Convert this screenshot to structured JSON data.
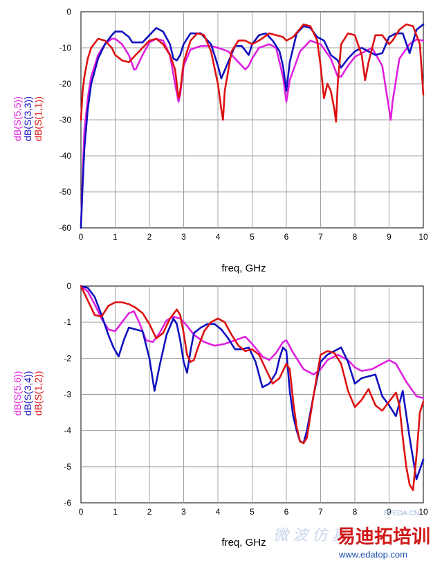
{
  "watermark": {
    "small": "RFEDA.CN",
    "brand": "易迪拓培训",
    "url": "www.edatop.com",
    "faint": "微 波 仿 真"
  },
  "chart_data": [
    {
      "type": "line",
      "xlabel": "freq, GHz",
      "xlim": [
        0,
        10
      ],
      "ylim": [
        -60,
        0
      ],
      "xticks": [
        0,
        1,
        2,
        3,
        4,
        5,
        6,
        7,
        8,
        9,
        10
      ],
      "yticks": [
        0,
        -10,
        -20,
        -30,
        -40,
        -50,
        -60
      ],
      "grid": true,
      "legend_placement": "left-vertical",
      "series": [
        {
          "name": "dB(S(5,5))",
          "color": "#e020e0",
          "x": [
            0,
            0.05,
            0.1,
            0.2,
            0.3,
            0.5,
            0.7,
            0.9,
            1.0,
            1.2,
            1.4,
            1.55,
            1.6,
            1.8,
            2.0,
            2.2,
            2.4,
            2.6,
            2.75,
            2.85,
            2.9,
            3.0,
            3.2,
            3.5,
            3.8,
            4.0,
            4.3,
            4.6,
            4.8,
            4.9,
            5.0,
            5.2,
            5.5,
            5.7,
            5.9,
            6.0,
            6.1,
            6.4,
            6.7,
            7.0,
            7.3,
            7.5,
            7.6,
            7.8,
            8.0,
            8.5,
            8.8,
            9.0,
            9.05,
            9.1,
            9.3,
            9.6,
            9.8,
            10.0
          ],
          "y": [
            -60,
            -45,
            -33,
            -24,
            -18,
            -12,
            -9,
            -7.5,
            -7.5,
            -9,
            -12,
            -16,
            -16,
            -12,
            -8.5,
            -7.5,
            -8,
            -12,
            -20,
            -25,
            -23,
            -15,
            -10.5,
            -9.5,
            -9.5,
            -10,
            -11,
            -14,
            -16,
            -15,
            -13,
            -10,
            -9,
            -10,
            -18,
            -25,
            -19,
            -11,
            -8,
            -9,
            -13,
            -18,
            -18,
            -15,
            -12.5,
            -10,
            -15,
            -27,
            -30,
            -25,
            -13,
            -9,
            -7.7,
            -8
          ]
        },
        {
          "name": "dB(S(3,3))",
          "color": "#1010c0",
          "x": [
            0,
            0.05,
            0.1,
            0.2,
            0.3,
            0.5,
            0.7,
            0.9,
            1.0,
            1.2,
            1.4,
            1.5,
            1.6,
            1.8,
            2.0,
            2.2,
            2.4,
            2.6,
            2.7,
            2.8,
            2.9,
            3.0,
            3.2,
            3.5,
            3.8,
            4.0,
            4.1,
            4.3,
            4.5,
            4.7,
            4.9,
            5.0,
            5.2,
            5.4,
            5.6,
            5.8,
            5.9,
            6.0,
            6.1,
            6.3,
            6.5,
            6.7,
            6.9,
            7.1,
            7.3,
            7.5,
            7.6,
            7.8,
            8.0,
            8.2,
            8.4,
            8.6,
            8.8,
            9.0,
            9.2,
            9.4,
            9.6,
            9.8,
            10.0
          ],
          "y": [
            -60,
            -48,
            -38,
            -27,
            -20,
            -13,
            -9,
            -6.5,
            -5.5,
            -5.5,
            -7,
            -8.5,
            -8.5,
            -8.5,
            -6.5,
            -4.5,
            -5.5,
            -9,
            -13,
            -13.5,
            -12,
            -9,
            -6,
            -6,
            -9,
            -15,
            -18.5,
            -14,
            -9.5,
            -9.5,
            -12,
            -9,
            -6.5,
            -6,
            -8,
            -11,
            -15,
            -22,
            -14,
            -6,
            -4,
            -4.5,
            -7,
            -8,
            -12,
            -13.5,
            -15.5,
            -13,
            -11,
            -10,
            -11,
            -12,
            -11.5,
            -7,
            -6,
            -6,
            -11.5,
            -5,
            -3.5
          ]
        },
        {
          "name": "dB(S(1,1))",
          "color": "#dd1010",
          "x": [
            0,
            0.05,
            0.1,
            0.2,
            0.3,
            0.5,
            0.7,
            0.9,
            1.0,
            1.2,
            1.4,
            1.6,
            1.8,
            2.0,
            2.2,
            2.4,
            2.6,
            2.75,
            2.85,
            2.9,
            3.0,
            3.2,
            3.4,
            3.6,
            3.8,
            4.0,
            4.1,
            4.15,
            4.2,
            4.4,
            4.6,
            4.8,
            5.0,
            5.2,
            5.5,
            5.7,
            5.9,
            6.0,
            6.2,
            6.5,
            6.7,
            6.9,
            7.0,
            7.1,
            7.2,
            7.3,
            7.4,
            7.45,
            7.5,
            7.6,
            7.8,
            8.0,
            8.2,
            8.3,
            8.4,
            8.6,
            8.8,
            9.0,
            9.1,
            9.3,
            9.5,
            9.7,
            9.9,
            10.0
          ],
          "y": [
            -30,
            -22,
            -18,
            -13,
            -10,
            -7.5,
            -8,
            -10,
            -12,
            -13.5,
            -14,
            -12,
            -10,
            -8,
            -7.5,
            -9,
            -12,
            -16,
            -24,
            -22,
            -14,
            -8,
            -6,
            -6.5,
            -11,
            -20,
            -27,
            -30,
            -22,
            -11,
            -8,
            -8,
            -9,
            -8,
            -6,
            -6.5,
            -7,
            -8,
            -7,
            -3.5,
            -4,
            -8,
            -15,
            -24,
            -20,
            -22,
            -27,
            -30.5,
            -20,
            -9,
            -6,
            -6.5,
            -12,
            -19,
            -14,
            -6.5,
            -6.5,
            -9,
            -8,
            -5,
            -3.5,
            -4,
            -9,
            -23
          ]
        }
      ]
    },
    {
      "type": "line",
      "xlabel": "freq, GHz",
      "xlim": [
        0,
        10
      ],
      "ylim": [
        -6,
        0
      ],
      "xticks": [
        0,
        1,
        2,
        3,
        4,
        5,
        6,
        7,
        8,
        9,
        10
      ],
      "yticks": [
        0,
        -1,
        -2,
        -3,
        -4,
        -5,
        -6
      ],
      "grid": true,
      "legend_placement": "left-vertical",
      "series": [
        {
          "name": "dB(S(5,6))",
          "color": "#e020e0",
          "x": [
            0,
            0.2,
            0.4,
            0.6,
            0.8,
            1.0,
            1.2,
            1.4,
            1.55,
            1.7,
            1.9,
            2.1,
            2.3,
            2.5,
            2.7,
            2.9,
            3.1,
            3.3,
            3.6,
            3.9,
            4.2,
            4.5,
            4.8,
            5.0,
            5.3,
            5.5,
            5.7,
            5.9,
            6.0,
            6.2,
            6.5,
            6.8,
            7.0,
            7.2,
            7.5,
            7.8,
            8.0,
            8.2,
            8.5,
            8.8,
            9.0,
            9.2,
            9.5,
            9.8,
            10.0
          ],
          "y": [
            0,
            -0.15,
            -0.5,
            -0.9,
            -1.2,
            -1.25,
            -1.0,
            -0.75,
            -0.7,
            -1.0,
            -1.5,
            -1.55,
            -1.3,
            -0.95,
            -0.85,
            -0.9,
            -1.1,
            -1.35,
            -1.55,
            -1.65,
            -1.6,
            -1.5,
            -1.4,
            -1.6,
            -1.95,
            -2.05,
            -1.85,
            -1.55,
            -1.5,
            -1.85,
            -2.3,
            -2.45,
            -2.3,
            -2.05,
            -1.9,
            -2.05,
            -2.25,
            -2.35,
            -2.3,
            -2.15,
            -2.05,
            -2.15,
            -2.65,
            -3.05,
            -3.1
          ]
        },
        {
          "name": "dB(S(3,4))",
          "color": "#1010c0",
          "x": [
            0,
            0.2,
            0.4,
            0.6,
            0.8,
            0.95,
            1.1,
            1.25,
            1.4,
            1.6,
            1.8,
            2.0,
            2.15,
            2.3,
            2.5,
            2.7,
            2.8,
            2.9,
            3.0,
            3.1,
            3.2,
            3.3,
            3.5,
            3.7,
            3.9,
            4.1,
            4.3,
            4.5,
            4.7,
            4.9,
            5.1,
            5.3,
            5.5,
            5.7,
            5.8,
            5.9,
            6.0,
            6.1,
            6.2,
            6.3,
            6.4,
            6.5,
            6.6,
            6.8,
            7.0,
            7.2,
            7.4,
            7.5,
            7.6,
            7.8,
            8.0,
            8.2,
            8.4,
            8.6,
            8.8,
            9.0,
            9.2,
            9.4,
            9.6,
            9.8,
            10.0
          ],
          "y": [
            0,
            -0.05,
            -0.3,
            -0.8,
            -1.35,
            -1.7,
            -1.95,
            -1.5,
            -1.15,
            -1.2,
            -1.25,
            -2.0,
            -2.9,
            -2.2,
            -1.35,
            -0.9,
            -1.05,
            -1.5,
            -2.1,
            -2.4,
            -1.8,
            -1.3,
            -1.15,
            -1.05,
            -1.05,
            -1.2,
            -1.45,
            -1.75,
            -1.75,
            -1.7,
            -2.1,
            -2.8,
            -2.7,
            -2.4,
            -2.0,
            -1.7,
            -1.8,
            -2.9,
            -3.6,
            -4.0,
            -4.3,
            -4.35,
            -4.0,
            -3.0,
            -2.1,
            -1.9,
            -1.8,
            -1.75,
            -1.7,
            -2.1,
            -2.7,
            -2.55,
            -2.5,
            -2.45,
            -3.05,
            -3.3,
            -3.6,
            -2.9,
            -4.2,
            -5.35,
            -4.8
          ]
        },
        {
          "name": "dB(S(1,2))",
          "color": "#dd1010",
          "x": [
            0,
            0.2,
            0.4,
            0.6,
            0.8,
            1.0,
            1.2,
            1.4,
            1.6,
            1.8,
            2.0,
            2.2,
            2.4,
            2.6,
            2.8,
            2.9,
            3.0,
            3.1,
            3.2,
            3.3,
            3.4,
            3.6,
            3.8,
            4.0,
            4.2,
            4.4,
            4.6,
            4.8,
            5.0,
            5.2,
            5.4,
            5.6,
            5.8,
            6.0,
            6.1,
            6.2,
            6.3,
            6.4,
            6.5,
            6.6,
            6.8,
            7.0,
            7.2,
            7.4,
            7.6,
            7.8,
            8.0,
            8.2,
            8.4,
            8.6,
            8.8,
            9.0,
            9.2,
            9.3,
            9.4,
            9.5,
            9.6,
            9.7,
            9.8,
            9.9,
            10.0
          ],
          "y": [
            0,
            -0.4,
            -0.8,
            -0.85,
            -0.55,
            -0.45,
            -0.45,
            -0.5,
            -0.6,
            -0.75,
            -1.05,
            -1.45,
            -1.3,
            -0.9,
            -0.65,
            -0.8,
            -1.3,
            -1.9,
            -2.1,
            -2.05,
            -1.75,
            -1.25,
            -1.0,
            -0.9,
            -1.0,
            -1.35,
            -1.65,
            -1.8,
            -1.75,
            -1.9,
            -2.3,
            -2.7,
            -2.55,
            -2.15,
            -2.3,
            -3.2,
            -3.9,
            -4.3,
            -4.35,
            -4.2,
            -3.0,
            -1.9,
            -1.8,
            -1.85,
            -2.15,
            -2.9,
            -3.35,
            -3.15,
            -2.85,
            -3.3,
            -3.45,
            -3.2,
            -2.95,
            -3.3,
            -4.2,
            -5.0,
            -5.5,
            -5.65,
            -4.7,
            -3.5,
            -3.2
          ]
        }
      ]
    }
  ]
}
